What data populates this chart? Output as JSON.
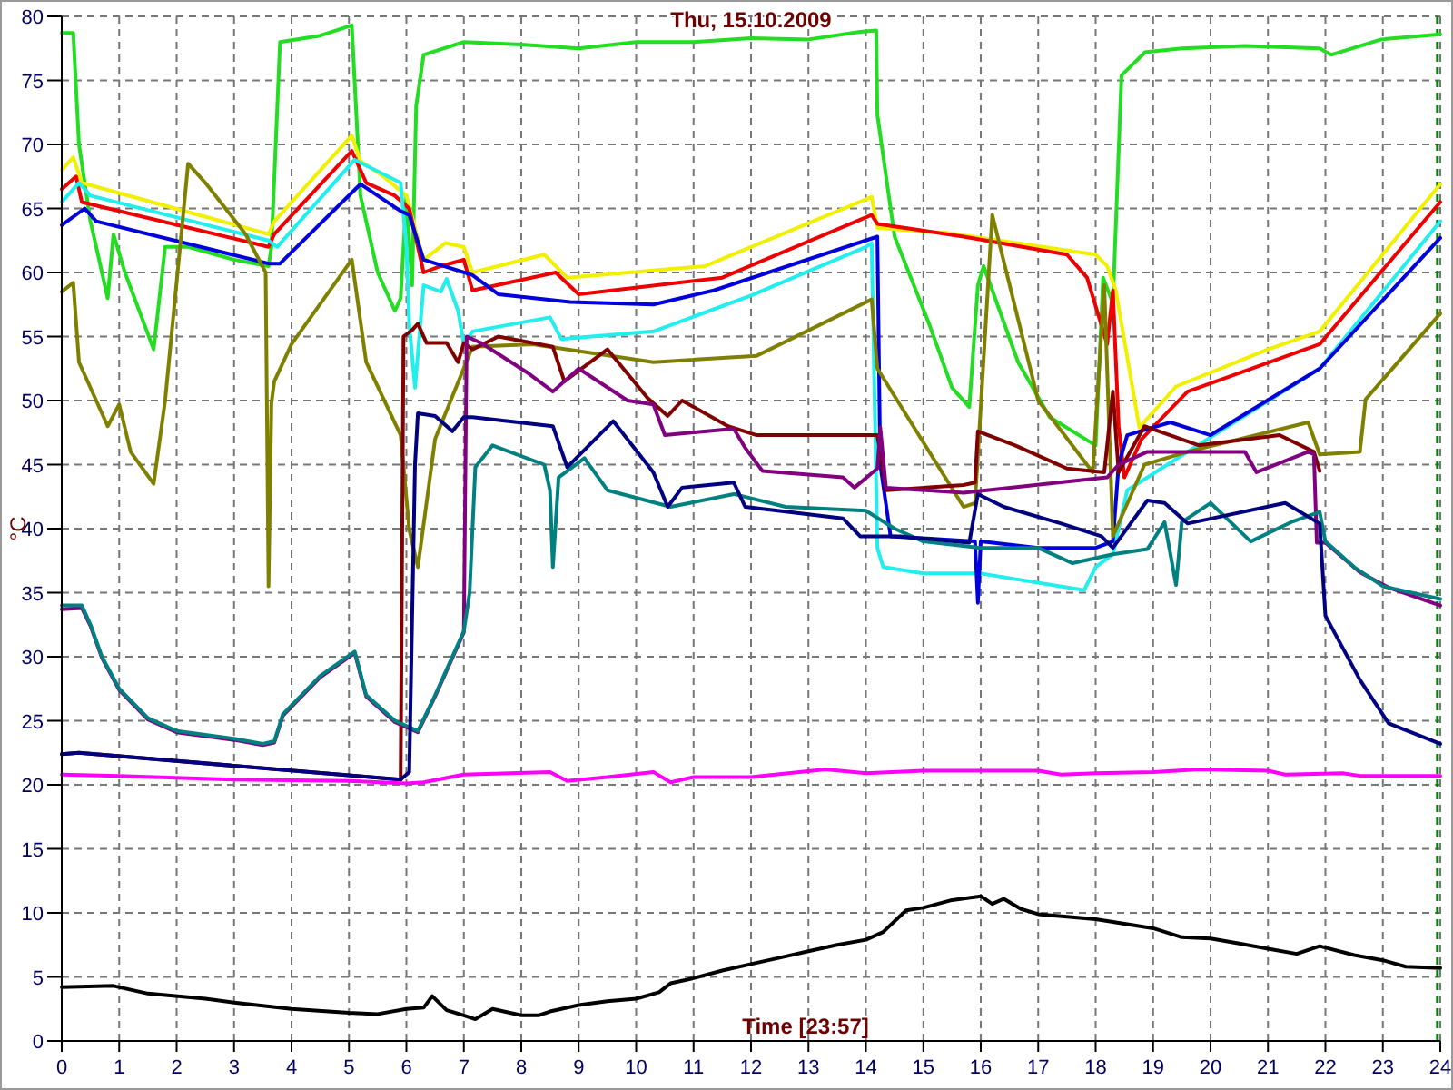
{
  "chart_data": {
    "type": "line",
    "title": "Thu, 15.10.2009",
    "xlabel": "Time [23:57]",
    "ylabel": "°C",
    "xlim": [
      0,
      24
    ],
    "xticks": [
      0,
      1,
      2,
      3,
      4,
      5,
      6,
      7,
      8,
      9,
      10,
      11,
      12,
      13,
      14,
      15,
      16,
      17,
      18,
      19,
      20,
      21,
      22,
      23,
      24
    ],
    "ylim": [
      0,
      80
    ],
    "yticks": [
      0,
      5,
      10,
      15,
      20,
      25,
      30,
      35,
      40,
      45,
      50,
      55,
      60,
      65,
      70,
      75,
      80
    ],
    "grid": true,
    "ref_lines": [
      {
        "axis": "x",
        "value": 23.95,
        "label": null,
        "color": "#008000",
        "line_style": "dashed"
      }
    ],
    "series": [
      {
        "color": "#22dd22",
        "x": [
          0,
          0.2,
          0.3,
          0.5,
          0.8,
          0.9,
          1.1,
          1.6,
          1.8,
          2.2,
          3,
          3.6,
          3.65,
          3.8,
          4.5,
          5.05,
          5.2,
          5.5,
          5.8,
          5.9,
          6.0,
          6.1,
          6.17,
          6.3,
          7,
          8,
          9,
          10,
          11,
          12,
          13,
          13.9,
          14.18,
          14.2,
          14.5,
          15.1,
          15.5,
          15.8,
          15.95,
          16.05,
          16.65,
          17.2,
          18.0,
          18.13,
          18.3,
          18.45,
          18.86,
          19.5,
          20.6,
          21.9,
          22.1,
          22.97,
          24
        ],
        "values": [
          78.7,
          78.7,
          70,
          64,
          58,
          63,
          60,
          54,
          62,
          62,
          61,
          60.5,
          62,
          78,
          78.5,
          79.3,
          66,
          60,
          57,
          58,
          66,
          59,
          73,
          77,
          78,
          77.8,
          77.5,
          78,
          78,
          78.3,
          78.2,
          78.8,
          78.9,
          72.3,
          62.8,
          56,
          51,
          49.5,
          59,
          60.5,
          53,
          48.7,
          46.5,
          59.6,
          57.6,
          75.4,
          77.2,
          77.5,
          77.7,
          77.5,
          77,
          78.2,
          78.6
        ]
      },
      {
        "color": "#f0f000",
        "x": [
          0,
          0.2,
          0.35,
          3.6,
          3.7,
          5.05,
          5.2,
          5.6,
          6.0,
          6.3,
          6.68,
          7.0,
          7.15,
          8.4,
          8.8,
          11.2,
          14.1,
          14.2,
          15,
          15.4,
          18.0,
          18.2,
          18.35,
          18.76,
          19.4,
          21,
          21.9,
          24
        ],
        "values": [
          68,
          69,
          67,
          63,
          64,
          70.7,
          68.7,
          67.5,
          66,
          61,
          62.3,
          62,
          60,
          61.4,
          59.6,
          60.5,
          65.9,
          63.5,
          63.2,
          63.1,
          61.4,
          60.5,
          58.6,
          47.9,
          51.1,
          54,
          55.4,
          66.9
        ]
      },
      {
        "color": "#ee0000",
        "x": [
          0,
          0.25,
          0.35,
          3.6,
          3.7,
          5.05,
          5.3,
          5.8,
          6.05,
          6.3,
          6.6,
          7.0,
          7.15,
          8.6,
          9.0,
          11.5,
          14.1,
          14.2,
          15.7,
          17.5,
          17.85,
          18.2,
          18.3,
          18.4,
          18.5,
          18.8,
          19.6,
          21.9,
          24
        ],
        "values": [
          66.5,
          67.5,
          65.5,
          62,
          63,
          69.5,
          67,
          66,
          65,
          60,
          60.5,
          61,
          58.6,
          60,
          58.3,
          59.6,
          64.5,
          63.8,
          62.8,
          61.4,
          59.6,
          54.4,
          58.6,
          48,
          44,
          47,
          50.7,
          54.4,
          65.5
        ]
      },
      {
        "color": "#22eeee",
        "x": [
          0,
          0.3,
          0.5,
          3.6,
          3.75,
          5.1,
          5.9,
          6.0,
          6.05,
          6.15,
          6.3,
          6.6,
          6.7,
          6.9,
          7.0,
          7.15,
          8.5,
          8.7,
          10.3,
          12,
          14,
          14.1,
          14.2,
          14.3,
          15,
          16,
          17.8,
          18,
          18.3,
          18.55,
          19.6,
          21.9,
          24
        ],
        "values": [
          65.5,
          67,
          66,
          62.5,
          62,
          68.8,
          67,
          62,
          56,
          51,
          59,
          58.5,
          59.5,
          57,
          54.4,
          55.4,
          56.5,
          54.8,
          55.4,
          58.2,
          62,
          62.3,
          38.5,
          37,
          36.5,
          36.5,
          35.2,
          37,
          38,
          43,
          46,
          52.5,
          64
        ]
      },
      {
        "color": "#0000dd",
        "x": [
          0,
          0.4,
          0.6,
          3.6,
          3.8,
          5.2,
          5.9,
          6.05,
          6.3,
          7.15,
          7.6,
          8.85,
          10.3,
          11.35,
          14.2,
          14.25,
          14.43,
          15.9,
          15.95,
          16.0,
          17,
          18,
          18.3,
          18.4,
          18.55,
          19.3,
          20,
          21.9,
          24
        ],
        "values": [
          63.7,
          65,
          64,
          60.7,
          60.7,
          66.9,
          64.8,
          64.5,
          61,
          59.8,
          58.3,
          57.7,
          57.5,
          58.6,
          62.8,
          45,
          39.4,
          39,
          34.2,
          39,
          38.5,
          38.5,
          39,
          45,
          47.3,
          48.3,
          47.3,
          52.5,
          62.7
        ]
      },
      {
        "color": "#808000",
        "x": [
          0,
          0.2,
          0.3,
          0.8,
          1.0,
          1.2,
          1.6,
          1.8,
          2.2,
          2.5,
          3.2,
          3.55,
          3.6,
          3.65,
          3.7,
          4.0,
          5.05,
          5.3,
          5.9,
          6.05,
          6.2,
          6.5,
          7.15,
          8.2,
          10.3,
          12.1,
          14.1,
          14.2,
          15.7,
          15.9,
          16.2,
          17,
          17.95,
          18.15,
          18.3,
          18.85,
          19.6,
          21.7,
          21.9,
          22.6,
          22.7,
          24
        ],
        "values": [
          58.5,
          59.2,
          53,
          48,
          49.7,
          46,
          43.5,
          50,
          68.5,
          67,
          63,
          60,
          35.5,
          49.8,
          51.5,
          54.4,
          61,
          53,
          47.3,
          39.9,
          37,
          47,
          54.2,
          54.4,
          53,
          53.5,
          57.9,
          52.5,
          41.7,
          42,
          64.5,
          50,
          44.4,
          59,
          39.4,
          45,
          46,
          48.3,
          45.8,
          46,
          50.1,
          56.8
        ]
      },
      {
        "color": "#800000",
        "x": [
          0,
          0.3,
          5.9,
          5.95,
          6.1,
          6.2,
          6.35,
          6.7,
          6.9,
          7.0,
          7.15,
          7.6,
          8.55,
          8.75,
          9.5,
          10.2,
          10.55,
          10.8,
          11.6,
          12.1,
          13.5,
          14.2,
          14.35,
          15.7,
          15.9,
          15.95,
          16.6,
          17.5,
          18.15,
          18.3,
          18.4,
          18.85,
          19.8,
          21.2,
          21.8,
          21.9
        ],
        "values": [
          22.4,
          22.5,
          20.4,
          55,
          55.5,
          56,
          54.5,
          54.5,
          53,
          54.5,
          54,
          55,
          54.2,
          51.5,
          54,
          50.2,
          48.8,
          50,
          48,
          47.3,
          47.3,
          47.3,
          43,
          43.4,
          43.6,
          47.6,
          46.5,
          44.7,
          44.4,
          50.7,
          44.4,
          48,
          46.5,
          47.3,
          46,
          44.5
        ]
      },
      {
        "color": "#800080",
        "x": [
          0,
          0.35,
          0.5,
          0.7,
          1.0,
          1.5,
          2.0,
          3.0,
          3.5,
          3.7,
          3.85,
          4.5,
          5.1,
          5.3,
          5.8,
          6.2,
          6.5,
          7.0,
          7.05,
          7.3,
          8.1,
          8.55,
          9,
          9.85,
          10.3,
          10.5,
          11.7,
          11.9,
          12.2,
          13.6,
          13.8,
          14.2,
          14.25,
          14.35,
          15.7,
          18.2,
          18.4,
          18.9,
          20.6,
          20.8,
          21.7,
          21.8,
          21.85,
          22.0,
          22.6,
          23.1,
          24
        ],
        "values": [
          33.7,
          33.8,
          32.4,
          29.9,
          27.4,
          25.1,
          24.1,
          23.5,
          23.1,
          23.3,
          25.4,
          28.4,
          30.3,
          26.9,
          24.9,
          24.1,
          26.9,
          31.9,
          55,
          54.5,
          52.2,
          50.7,
          52.5,
          50,
          49.7,
          47.3,
          47.8,
          46.3,
          44.5,
          44,
          43.2,
          44.7,
          47.9,
          43.2,
          42.8,
          44,
          45,
          46,
          46,
          44.4,
          46,
          45.8,
          38.9,
          38.9,
          36.6,
          35.4,
          34
        ]
      },
      {
        "color": "#008080",
        "x": [
          0,
          0.35,
          0.5,
          0.7,
          1.0,
          1.5,
          2.0,
          3.0,
          3.5,
          3.7,
          3.85,
          4.5,
          5.1,
          5.3,
          5.8,
          6.2,
          6.5,
          7.0,
          7.1,
          7.2,
          7.5,
          8.4,
          8.5,
          8.55,
          8.65,
          9.1,
          9.5,
          10.6,
          11.7,
          12.6,
          14,
          14.5,
          15,
          16,
          17,
          17.6,
          18.3,
          18.9,
          19.2,
          19.4,
          19.5,
          20,
          20.7,
          21.4,
          21.9,
          22,
          22.5,
          23,
          24
        ],
        "values": [
          34,
          34,
          32.5,
          30,
          27.5,
          25.2,
          24.2,
          23.6,
          23.2,
          23.4,
          25.5,
          28.5,
          30.4,
          27,
          25,
          24.2,
          27,
          32,
          35,
          44.8,
          46.5,
          45,
          43,
          37,
          44,
          45.5,
          43,
          41.7,
          42.7,
          41.7,
          41.4,
          40,
          39,
          38.5,
          38.5,
          37.3,
          38,
          38.4,
          40.5,
          35.6,
          40.5,
          42,
          39,
          40.5,
          41.3,
          39,
          37,
          35.5,
          34.5
        ]
      },
      {
        "color": "#000080",
        "x": [
          0,
          0.3,
          5.9,
          6.05,
          6.15,
          6.2,
          6.5,
          6.8,
          7.0,
          7.15,
          8.55,
          8.8,
          9.6,
          10.3,
          10.55,
          10.8,
          11.7,
          11.9,
          13.6,
          13.9,
          14.6,
          15.8,
          15.95,
          16.4,
          17.4,
          18.1,
          18.3,
          18.9,
          19.2,
          19.6,
          21.3,
          21.9,
          22.0,
          22.6,
          23.1,
          24
        ],
        "values": [
          22.4,
          22.5,
          20.4,
          21,
          45,
          49,
          48.8,
          47.6,
          48.7,
          48.7,
          48,
          44.8,
          48.4,
          44.4,
          41.7,
          43.2,
          43.6,
          41.7,
          40.8,
          39.4,
          39.4,
          38.9,
          42.7,
          41.7,
          40.4,
          39.4,
          38.5,
          42.2,
          42,
          40.4,
          42,
          40.4,
          33.2,
          28.2,
          24.8,
          23.2
        ]
      },
      {
        "color": "#ff00ff",
        "x": [
          0,
          1.0,
          3,
          5,
          6,
          6.3,
          7,
          8.5,
          8.8,
          9.5,
          10.3,
          10.6,
          11,
          12,
          13.3,
          14,
          15,
          17,
          17.4,
          18,
          19,
          19.8,
          21,
          21.3,
          22.3,
          22.6,
          24
        ],
        "values": [
          20.8,
          20.7,
          20.4,
          20.3,
          20.1,
          20.2,
          20.8,
          21.0,
          20.3,
          20.6,
          21,
          20.2,
          20.6,
          20.6,
          21.2,
          20.9,
          21.1,
          21.1,
          20.8,
          20.9,
          21,
          21.2,
          21.1,
          20.8,
          20.9,
          20.7,
          20.7
        ]
      },
      {
        "color": "#000000",
        "x": [
          0,
          0.9,
          1.5,
          2.5,
          3,
          4,
          5,
          5.5,
          6,
          6.3,
          6.45,
          6.7,
          7,
          7.2,
          7.5,
          8,
          8.3,
          8.5,
          9,
          9.5,
          10,
          10.4,
          10.6,
          11,
          11.5,
          12,
          12.5,
          13,
          13.5,
          14.0,
          14.3,
          14.7,
          15,
          15.5,
          16,
          16.2,
          16.4,
          16.7,
          17,
          18,
          19,
          19.5,
          20,
          20.5,
          21,
          21.5,
          21.9,
          22.5,
          23,
          23.4,
          24
        ],
        "values": [
          4.2,
          4.3,
          3.7,
          3.3,
          3.0,
          2.5,
          2.2,
          2.1,
          2.5,
          2.6,
          3.5,
          2.4,
          2.0,
          1.7,
          2.5,
          2.0,
          2.0,
          2.3,
          2.8,
          3.1,
          3.3,
          3.8,
          4.5,
          4.9,
          5.5,
          6.0,
          6.5,
          7.0,
          7.5,
          7.9,
          8.5,
          10.2,
          10.4,
          11.0,
          11.3,
          10.7,
          11.1,
          10.3,
          9.9,
          9.5,
          8.8,
          8.1,
          8.0,
          7.6,
          7.2,
          6.8,
          7.4,
          6.7,
          6.3,
          5.8,
          5.7
        ]
      }
    ]
  }
}
